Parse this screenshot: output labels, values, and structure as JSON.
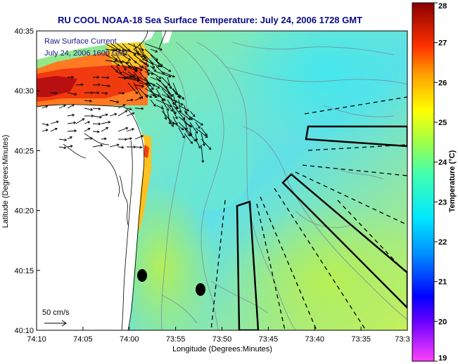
{
  "title": "RU COOL  NOAA-18  Sea Surface Temperature:  July 24, 2006 1728 GMT",
  "legend": {
    "line1": "Raw Surface Current",
    "line2": "July 24, 2006 1600 GMT",
    "scale_label": "50 cm/s"
  },
  "axes": {
    "xlabel": "Longitude (Degrees:Minutes)",
    "ylabel": "Latitude (Degrees:Minutes)",
    "xticks": [
      "74:10",
      "74:05",
      "74:00",
      "73:55",
      "73:50",
      "73:45",
      "73:40",
      "73:35",
      "73:3"
    ],
    "yticks": [
      "40:35",
      "40:30",
      "40:25",
      "40:20",
      "40:15",
      "40:10"
    ]
  },
  "colorbar": {
    "label": "Temperature (°C)",
    "ticks": [
      "28",
      "27",
      "26",
      "25",
      "24",
      "23",
      "22",
      "21",
      "20",
      "19"
    ],
    "range": [
      19,
      28
    ]
  },
  "colors": {
    "title": "#0a0a8c",
    "land": "#ffffff",
    "vectors": "#000000"
  }
}
